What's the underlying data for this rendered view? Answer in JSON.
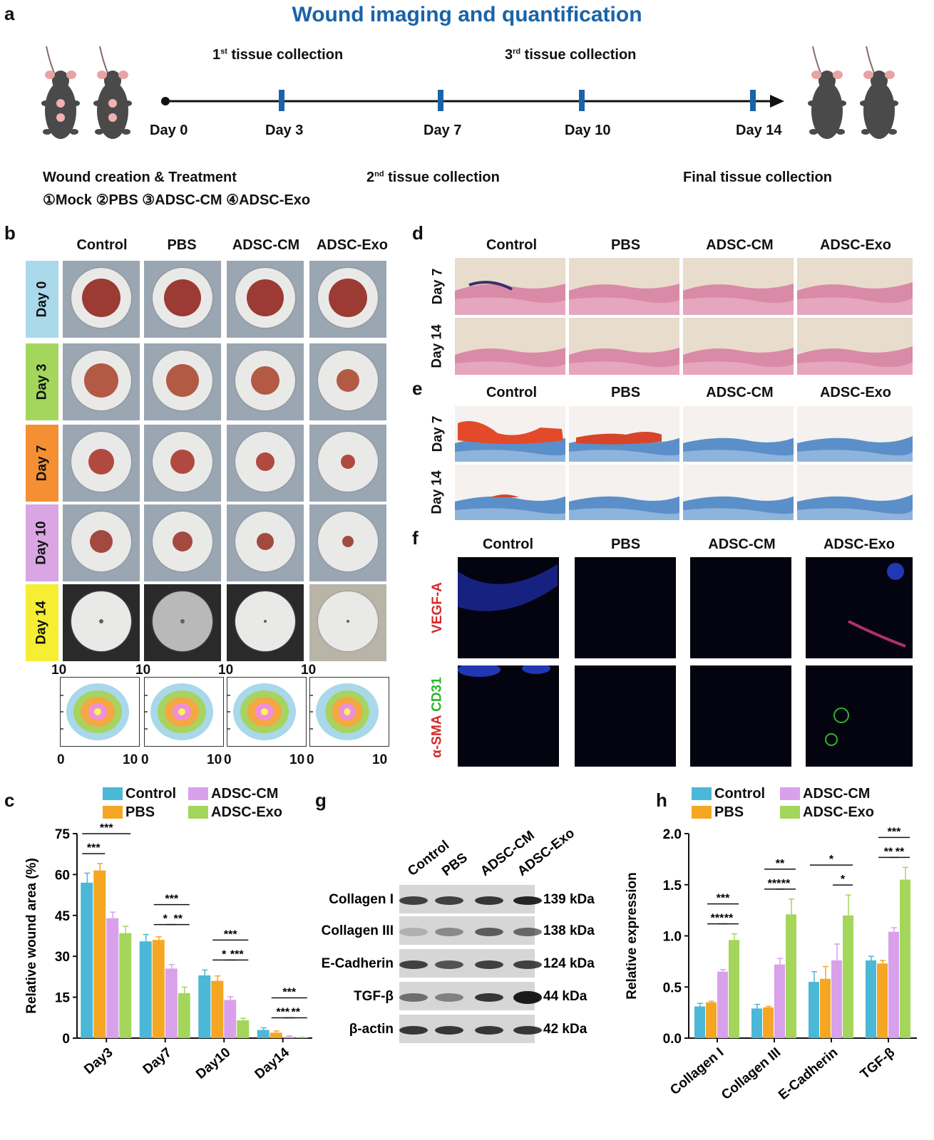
{
  "panels": {
    "a": "a",
    "b": "b",
    "c": "c",
    "d": "d",
    "e": "e",
    "f": "f",
    "g": "g",
    "h": "h"
  },
  "panel_a": {
    "title": "Wound imaging and quantification",
    "collection_1": "1st tissue collection",
    "collection_2": "2nd tissue collection",
    "collection_3": "3rd tissue collection",
    "collection_final": "Final tissue collection",
    "days": [
      "Day 0",
      "Day 3",
      "Day 7",
      "Day 10",
      "Day 14"
    ],
    "treatment_title": "Wound creation & Treatment",
    "treatment_groups": "①Mock ②PBS ③ADSC-CM ④ADSC-Exo",
    "timeline_color": "#1a63a8"
  },
  "panel_b": {
    "columns": [
      "Control",
      "PBS",
      "ADSC-CM",
      "ADSC-Exo"
    ],
    "rows": [
      "Day 0",
      "Day 3",
      "Day 7",
      "Day 10",
      "Day 14"
    ],
    "row_colors": [
      "#a9d9ea",
      "#a4d65e",
      "#f58f33",
      "#d9a5e3",
      "#f5ee33"
    ],
    "contour_axis_max": "10",
    "contour_axis_min": "0",
    "contour_colors": [
      "#a8d8ea",
      "#a7d35f",
      "#f4a742",
      "#ef8fd8",
      "#f7f261"
    ]
  },
  "panel_d": {
    "columns": [
      "Control",
      "PBS",
      "ADSC-CM",
      "ADSC-Exo"
    ],
    "rows": [
      "Day 7",
      "Day 14"
    ]
  },
  "panel_e": {
    "columns": [
      "Control",
      "PBS",
      "ADSC-CM",
      "ADSC-Exo"
    ],
    "rows": [
      "Day 7",
      "Day 14"
    ]
  },
  "panel_f": {
    "columns": [
      "Control",
      "PBS",
      "ADSC-CM",
      "ADSC-Exo"
    ],
    "row1_label": "VEGF-A",
    "row2_label_red": "α-SMA",
    "row2_label_green": "CD31"
  },
  "panel_g": {
    "lanes": [
      "Control",
      "PBS",
      "ADSC-CM",
      "ADSC-Exo"
    ],
    "proteins": [
      "Collagen I",
      "Collagen III",
      "E-Cadherin",
      "TGF-β",
      "β-actin"
    ],
    "sizes": [
      "139 kDa",
      "138 kDa",
      "124 kDa",
      "44 kDa",
      "42 kDa"
    ]
  },
  "chart_data": [
    {
      "panel": "c",
      "type": "bar",
      "categories": [
        "Day3",
        "Day7",
        "Day10",
        "Day14"
      ],
      "series": [
        {
          "name": "Control",
          "values": [
            57,
            35.5,
            23,
            3
          ],
          "errors": [
            3.5,
            2.5,
            2,
            0.8
          ]
        },
        {
          "name": "PBS",
          "values": [
            61.5,
            36,
            21,
            2
          ],
          "errors": [
            2.5,
            1.2,
            1.8,
            0.6
          ]
        },
        {
          "name": "ADSC-CM",
          "values": [
            44,
            25.5,
            14,
            0.5
          ],
          "errors": [
            2.2,
            1.5,
            1.2,
            0.3
          ]
        },
        {
          "name": "ADSC-Exo",
          "values": [
            38.5,
            16.5,
            6.5,
            0.2
          ],
          "errors": [
            2.5,
            2.2,
            0.8,
            0.1
          ]
        }
      ],
      "ylabel": "Relative wound area (%)",
      "ylim": [
        0,
        75
      ],
      "yticks": [
        "0",
        "15",
        "30",
        "45",
        "60",
        "75"
      ],
      "legend_order": [
        "Control",
        "ADSC-CM",
        "PBS",
        "ADSC-Exo"
      ],
      "colors": [
        "#4ab8d6",
        "#f5a623",
        "#d9a0ec",
        "#a3d65a"
      ],
      "significance": [
        {
          "cat": 0,
          "from": 0,
          "to": 3,
          "label": "***",
          "level": 1
        },
        {
          "cat": 0,
          "from": 0,
          "to": 1,
          "label": "***",
          "level": 0
        },
        {
          "cat": 1,
          "from": 1,
          "to": 3,
          "label": "***",
          "level": 1
        },
        {
          "cat": 1,
          "from": 1,
          "to": 2,
          "label": "*",
          "level": 0
        },
        {
          "cat": 1,
          "from": 2,
          "to": 3,
          "label": "**",
          "level": 0
        },
        {
          "cat": 2,
          "from": 1,
          "to": 3,
          "label": "***",
          "level": 1
        },
        {
          "cat": 2,
          "from": 1,
          "to": 2,
          "label": "*",
          "level": 0
        },
        {
          "cat": 2,
          "from": 2,
          "to": 3,
          "label": "***",
          "level": 0
        },
        {
          "cat": 3,
          "from": 1,
          "to": 3,
          "label": "***",
          "level": 1
        },
        {
          "cat": 3,
          "from": 1,
          "to": 2,
          "label": "***",
          "level": 0
        },
        {
          "cat": 3,
          "from": 2,
          "to": 3,
          "label": "**",
          "level": 0
        }
      ]
    },
    {
      "panel": "h",
      "type": "bar",
      "categories": [
        "Collagen I",
        "Collagen III",
        "E-Cadherin",
        "TGF-β"
      ],
      "series": [
        {
          "name": "Control",
          "values": [
            0.31,
            0.29,
            0.55,
            0.76
          ],
          "errors": [
            0.03,
            0.04,
            0.1,
            0.04
          ]
        },
        {
          "name": "PBS",
          "values": [
            0.35,
            0.3,
            0.58,
            0.73
          ],
          "errors": [
            0.01,
            0.01,
            0.12,
            0.03
          ]
        },
        {
          "name": "ADSC-CM",
          "values": [
            0.65,
            0.72,
            0.76,
            1.04
          ],
          "errors": [
            0.02,
            0.06,
            0.16,
            0.04
          ]
        },
        {
          "name": "ADSC-Exo",
          "values": [
            0.96,
            1.21,
            1.2,
            1.55
          ],
          "errors": [
            0.06,
            0.15,
            0.2,
            0.12
          ]
        }
      ],
      "ylabel": "Relative expression",
      "ylim": [
        0,
        2.0
      ],
      "yticks": [
        "0.0",
        "0.5",
        "1.0",
        "1.5",
        "2.0"
      ],
      "legend_order": [
        "Control",
        "ADSC-CM",
        "PBS",
        "ADSC-Exo"
      ],
      "colors": [
        "#4ab8d6",
        "#f5a623",
        "#d9a0ec",
        "#a3d65a"
      ],
      "significance": [
        {
          "cat": 0,
          "from": 1,
          "to": 3,
          "label": "***",
          "level": 1
        },
        {
          "cat": 0,
          "from": 1,
          "to": 2,
          "label": "***",
          "level": 0
        },
        {
          "cat": 0,
          "from": 2,
          "to": 3,
          "label": "**",
          "level": 0
        },
        {
          "cat": 1,
          "from": 1,
          "to": 3,
          "label": "**",
          "level": 1
        },
        {
          "cat": 1,
          "from": 1,
          "to": 2,
          "label": "***",
          "level": 0
        },
        {
          "cat": 1,
          "from": 2,
          "to": 3,
          "label": "**",
          "level": 0
        },
        {
          "cat": 2,
          "from": 0,
          "to": 3,
          "label": "*",
          "level": 1
        },
        {
          "cat": 2,
          "from": 2,
          "to": 3,
          "label": "*",
          "level": 0
        },
        {
          "cat": 3,
          "from": 1,
          "to": 3,
          "label": "***",
          "level": 1
        },
        {
          "cat": 3,
          "from": 1,
          "to": 2,
          "label": "**",
          "level": 0
        },
        {
          "cat": 3,
          "from": 2,
          "to": 3,
          "label": "**",
          "level": 0
        }
      ]
    }
  ]
}
